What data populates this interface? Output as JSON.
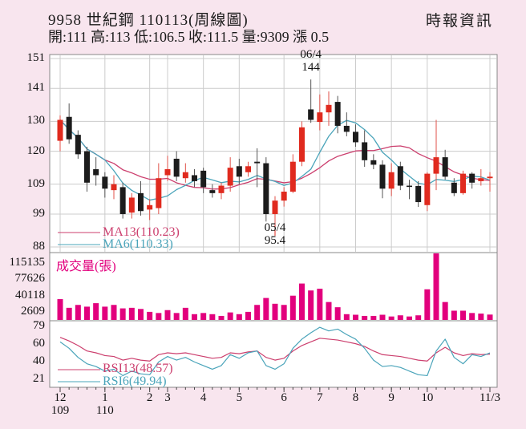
{
  "header": {
    "title": "9958 世紀鋼 110113(周線圖)",
    "source": "時報資訊",
    "ohlc_line": "開:111 高:113 低:106.5 收:111.5 量:9309 漲 0.5"
  },
  "chart_data": {
    "type": "candlestick",
    "title": "9958 世紀鋼 110113(周線圖)",
    "x_axis": {
      "month_labels": [
        "12",
        "1",
        "2",
        "3",
        "4",
        "5",
        "6",
        "7",
        "8",
        "9",
        "10",
        "11/3"
      ],
      "month_week_index": [
        0,
        5,
        10,
        12,
        16,
        20,
        25,
        29,
        33,
        37,
        41,
        48
      ],
      "year_labels": [
        {
          "label": "109",
          "week_index": 0
        },
        {
          "label": "110",
          "week_index": 5
        }
      ]
    },
    "price_pane": {
      "ylim": [
        88,
        151
      ],
      "y_ticks": [
        151,
        141,
        130,
        120,
        109,
        99,
        88
      ],
      "ma13_label": "MA13(110.23)",
      "ma6_label": "MA6(110.33)",
      "annotations": [
        {
          "text_top": "06/4",
          "text_bottom": "144",
          "week_index": 28
        },
        {
          "text_top": "05/4",
          "text_bottom": "95.4",
          "week_index": 24
        }
      ],
      "candles": [
        [
          123.5,
          132,
          120,
          130.5
        ],
        [
          131.5,
          136,
          122.5,
          124
        ],
        [
          125.5,
          127,
          117.5,
          119
        ],
        [
          120,
          121.5,
          106.5,
          109.5
        ],
        [
          114,
          118,
          108.5,
          112
        ],
        [
          111.5,
          113,
          104.5,
          107.5
        ],
        [
          107,
          112,
          104,
          109
        ],
        [
          108,
          109.5,
          97.5,
          99
        ],
        [
          99.5,
          106,
          97.5,
          104.5
        ],
        [
          106,
          110,
          98.5,
          100
        ],
        [
          100.5,
          104,
          97,
          102
        ],
        [
          101,
          116,
          99,
          111
        ],
        [
          112,
          118.5,
          110,
          114
        ],
        [
          117.5,
          120,
          110,
          111.5
        ],
        [
          111,
          116,
          109.5,
          113
        ],
        [
          112,
          114,
          108,
          110
        ],
        [
          113.5,
          114.5,
          106,
          108
        ],
        [
          107,
          109,
          104.5,
          106
        ],
        [
          106,
          109.5,
          104,
          108.5
        ],
        [
          108.5,
          118,
          106.5,
          114.5
        ],
        [
          115,
          117.5,
          109,
          111.5
        ],
        [
          113,
          116.5,
          111.5,
          115
        ],
        [
          116.5,
          121,
          108,
          116
        ],
        [
          116,
          118,
          96.5,
          99
        ],
        [
          99,
          105,
          95.4,
          103.5
        ],
        [
          103.5,
          108,
          101.5,
          106.5
        ],
        [
          106.5,
          119,
          106,
          116.5
        ],
        [
          116.5,
          130,
          115,
          128
        ],
        [
          134,
          144,
          129.5,
          130.5
        ],
        [
          129.8,
          139,
          127,
          133
        ],
        [
          133,
          140,
          128.5,
          135.5
        ],
        [
          136.5,
          138.5,
          126,
          128.5
        ],
        [
          128.5,
          133,
          125,
          126.5
        ],
        [
          126.5,
          129,
          121.5,
          123
        ],
        [
          123,
          127,
          114.8,
          117
        ],
        [
          117,
          119,
          114,
          115.5
        ],
        [
          115.5,
          117,
          104.3,
          107.5
        ],
        [
          107.5,
          116,
          105,
          113
        ],
        [
          115,
          116.5,
          107,
          108.5
        ],
        [
          108.5,
          110.5,
          104,
          108.4
        ],
        [
          108.4,
          110,
          101.4,
          103
        ],
        [
          102,
          113,
          100,
          112.5
        ],
        [
          112.5,
          130.5,
          107,
          118
        ],
        [
          118,
          120.5,
          110.5,
          111.5
        ],
        [
          109.5,
          111,
          105,
          106
        ],
        [
          106,
          113.5,
          105.5,
          112.5
        ],
        [
          112.5,
          113,
          107.5,
          109.5
        ],
        [
          110,
          114,
          108.5,
          111
        ],
        [
          111,
          113,
          106.5,
          111.5
        ]
      ]
    },
    "volume_pane": {
      "title": "成交量(張)",
      "y_ticks": [
        115135,
        77626,
        40118,
        2609
      ],
      "volumes": [
        36000,
        21000,
        26000,
        23000,
        29000,
        23000,
        26000,
        20000,
        21000,
        19000,
        14000,
        12000,
        17000,
        12000,
        21000,
        10000,
        12000,
        10000,
        7000,
        13000,
        10000,
        14000,
        26000,
        38000,
        28000,
        26000,
        42000,
        63000,
        51000,
        54000,
        31000,
        22000,
        10000,
        9000,
        7000,
        7000,
        9000,
        6000,
        8000,
        6000,
        8000,
        53000,
        115135,
        31000,
        16000,
        16000,
        12000,
        11000,
        9309
      ]
    },
    "rsi_pane": {
      "rsi13_label": "RSI13(48.57)",
      "rsi6_label": "RSI6(49.94)",
      "y_ticks": [
        79,
        60,
        40,
        21
      ],
      "rsi13": [
        67,
        63,
        58,
        52,
        50,
        47,
        46,
        42,
        44,
        42,
        41,
        48,
        50,
        49,
        50,
        48,
        46,
        44,
        45,
        50,
        49,
        51,
        52,
        45,
        42,
        44,
        52,
        58,
        62,
        66,
        65,
        64,
        62,
        60,
        57,
        52,
        48,
        47,
        46,
        44,
        42,
        41,
        50,
        56,
        50,
        47,
        49,
        48,
        48.57
      ],
      "rsi6": [
        62,
        55,
        45,
        38,
        35,
        30,
        32,
        25,
        30,
        27,
        26,
        40,
        46,
        42,
        45,
        40,
        36,
        32,
        36,
        48,
        44,
        50,
        52,
        36,
        32,
        38,
        55,
        65,
        72,
        78,
        74,
        76,
        70,
        65,
        55,
        42,
        35,
        36,
        34,
        30,
        26,
        25,
        52,
        65,
        45,
        38,
        48,
        46,
        49.94
      ]
    },
    "colors": {
      "background": "#f8e5ee",
      "pane_bg": "#ffffff",
      "border": "#888888",
      "grid": "#cccccc",
      "up": "#e02a1e",
      "up_wick": "#e0524a",
      "down": "#1c1c1c",
      "down_wick": "#555555",
      "ma13": "#cc3f6e",
      "ma6": "#4aa4ba",
      "volume": "#e2007d"
    }
  }
}
